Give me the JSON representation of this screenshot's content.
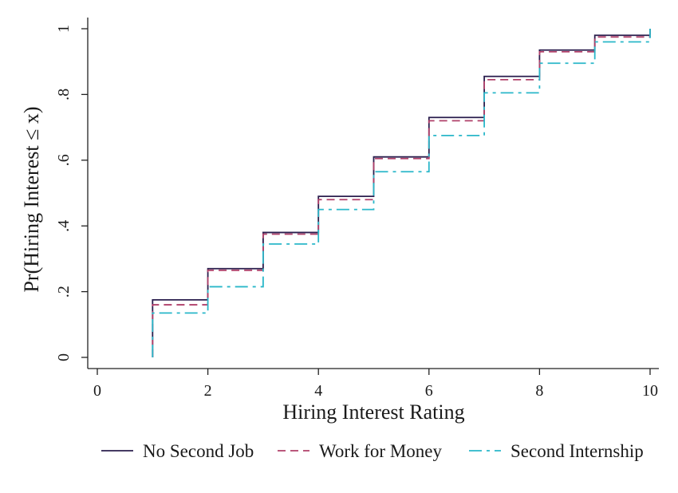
{
  "chart_data": {
    "type": "line",
    "step": true,
    "xlabel": "Hiring Interest Rating",
    "ylabel": "Pr(Hiring Interest ≤ x)",
    "xlim": [
      0,
      10
    ],
    "ylim": [
      0,
      1
    ],
    "xticks": [
      "0",
      "2",
      "4",
      "6",
      "8",
      "10"
    ],
    "yticks": [
      "0",
      ".2",
      ".4",
      ".6",
      ".8",
      "1"
    ],
    "x": [
      1,
      2,
      3,
      4,
      5,
      6,
      7,
      8,
      9,
      10
    ],
    "series": [
      {
        "name": "No Second Job",
        "color": "#2b1f4e",
        "dash": "solid",
        "values": [
          0.175,
          0.27,
          0.38,
          0.49,
          0.61,
          0.73,
          0.855,
          0.935,
          0.98,
          1.0
        ]
      },
      {
        "name": "Work for Money",
        "color": "#b0406a",
        "dash": "dash",
        "values": [
          0.16,
          0.265,
          0.375,
          0.48,
          0.605,
          0.72,
          0.845,
          0.93,
          0.975,
          1.0
        ]
      },
      {
        "name": "Second Internship",
        "color": "#2ab7c9",
        "dash": "dashdot",
        "values": [
          0.135,
          0.215,
          0.345,
          0.45,
          0.565,
          0.675,
          0.805,
          0.895,
          0.96,
          1.0
        ]
      }
    ],
    "legend_position": "bottom",
    "grid": false
  }
}
